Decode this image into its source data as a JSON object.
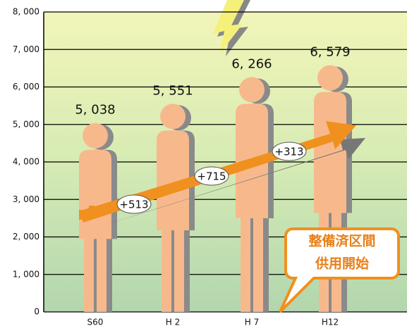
{
  "chart_data": {
    "type": "pictogram",
    "categories": [
      "S60",
      "H 2",
      "H 7",
      "H12"
    ],
    "values": [
      5038,
      5551,
      6266,
      6579
    ],
    "value_labels": [
      "5, 038",
      "5, 551",
      "6, 266",
      "6, 579"
    ],
    "color": "#f7b98c",
    "ylim": [
      0,
      8000
    ],
    "yticks": [
      0,
      {
        "value": 1000,
        "label": "1, 000"
      },
      {
        "value": 2000,
        "label": "2, 000"
      },
      {
        "value": 3000,
        "label": "3, 000"
      },
      {
        "value": 4000,
        "label": "4, 000"
      },
      {
        "value": 5000,
        "label": "5, 000"
      },
      {
        "value": 6000,
        "label": "6, 000"
      },
      {
        "value": 7000,
        "label": "7, 000"
      },
      {
        "value": 8000,
        "label": "8, 000"
      }
    ],
    "grid": true,
    "annotations": [
      "+513",
      "+715",
      "+313",
      "整備済区間",
      "供用開始"
    ]
  }
}
